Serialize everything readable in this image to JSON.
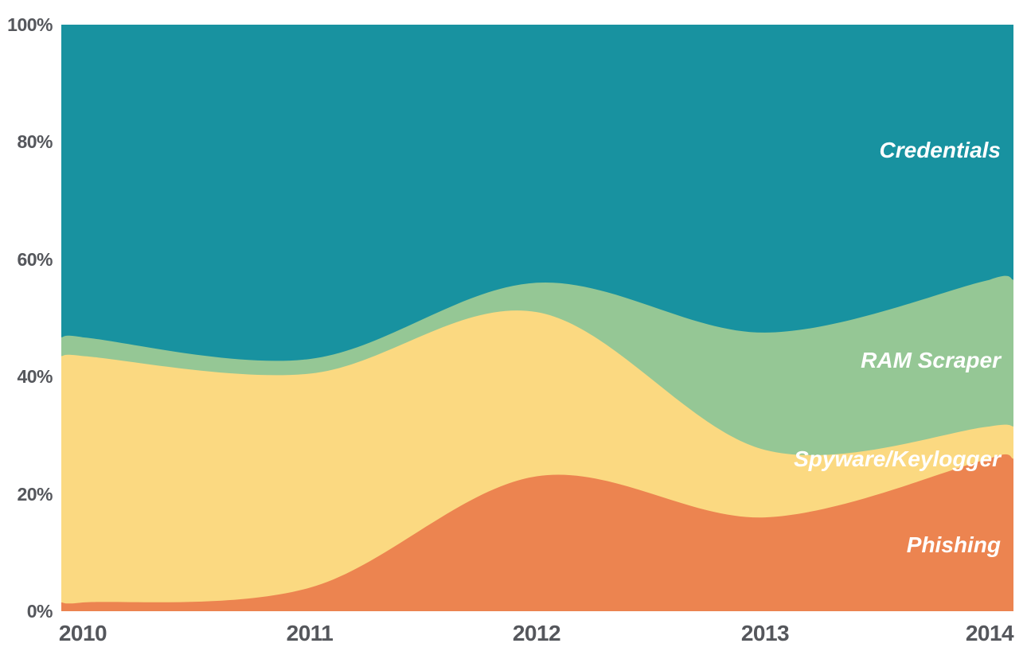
{
  "chart_data": {
    "type": "area",
    "stacked": true,
    "normalized": "percent-of-total",
    "x": [
      2010,
      2011,
      2012,
      2013,
      2014
    ],
    "x_tick_labels": [
      "2010",
      "2011",
      "2012",
      "2013",
      "2014"
    ],
    "y_tick_labels": [
      "100%",
      "80%",
      "60%",
      "40%",
      "20%",
      "0%"
    ],
    "y_tick_values": [
      100,
      80,
      60,
      40,
      20,
      0
    ],
    "ylim": [
      0,
      100
    ],
    "grid": false,
    "legend_position": "inline-labels-right",
    "series_order_bottom_to_top": [
      "Phishing",
      "Spyware/Keylogger",
      "RAM Scraper",
      "Credentials"
    ],
    "series": [
      {
        "name": "Phishing",
        "color": "#EC8450",
        "values": [
          1.5,
          4,
          23,
          16,
          26
        ]
      },
      {
        "name": "Spyware/Keylogger",
        "color": "#FBD981",
        "values": [
          42,
          36.5,
          28,
          11.5,
          5.5
        ]
      },
      {
        "name": "RAM Scraper",
        "color": "#95C795",
        "values": [
          3.2,
          2.5,
          5,
          20,
          25
        ]
      },
      {
        "name": "Credentials",
        "color": "#1892A0",
        "values": [
          53.3,
          57,
          44,
          52.5,
          43.5
        ]
      }
    ],
    "colors": {
      "tick_text": "#55575C",
      "series_label_text": "#FFFFFF",
      "background": "#FFFFFF"
    }
  }
}
